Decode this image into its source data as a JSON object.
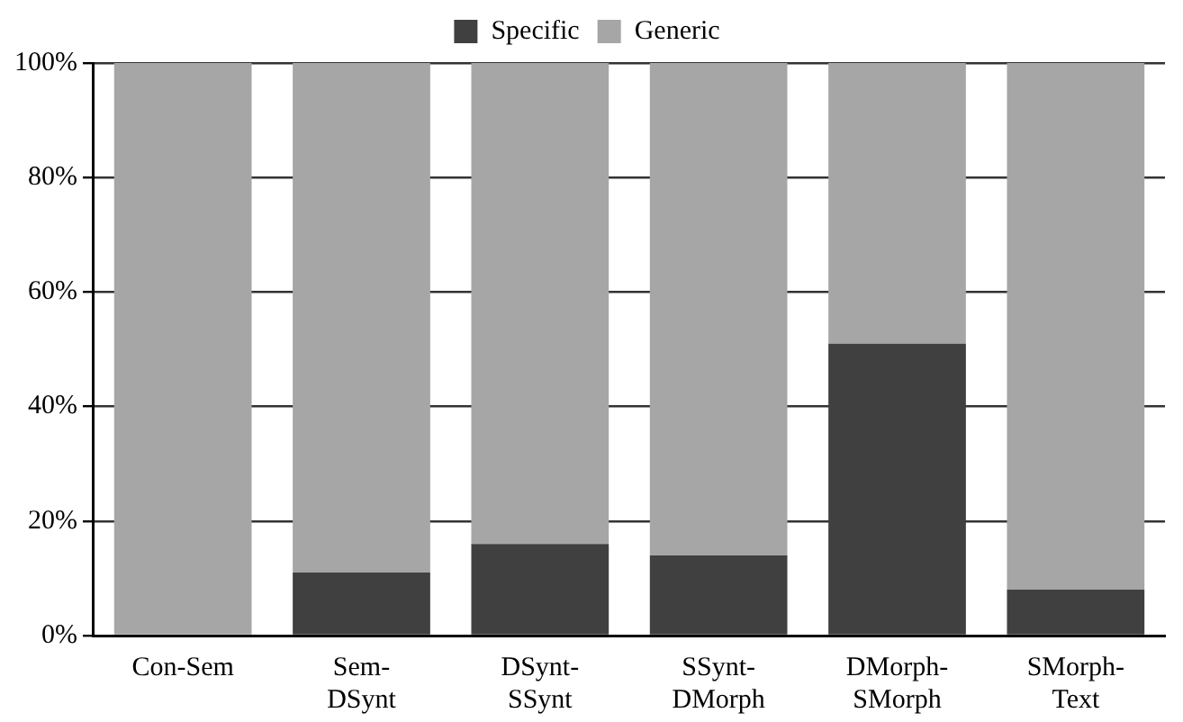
{
  "chart_data": {
    "type": "bar",
    "stacked": true,
    "categories": [
      "Con-Sem",
      "Sem-\nDSynt",
      "DSynt-\nSSynt",
      "SSynt-\nDMorph",
      "DMorph-\nSMorph",
      "SMorph-\nText"
    ],
    "series": [
      {
        "name": "Specific",
        "color": "#404040",
        "values": [
          0,
          11,
          16,
          14,
          51,
          8
        ]
      },
      {
        "name": "Generic",
        "color": "#a6a6a6",
        "values": [
          100,
          89,
          84,
          86,
          49,
          92
        ]
      }
    ],
    "ylim": [
      0,
      100
    ],
    "yticks": [
      {
        "value": 0,
        "label": "0%"
      },
      {
        "value": 20,
        "label": "20%"
      },
      {
        "value": 40,
        "label": "40%"
      },
      {
        "value": 60,
        "label": "60%"
      },
      {
        "value": 80,
        "label": "80%"
      },
      {
        "value": 100,
        "label": "100%"
      }
    ],
    "grid": "y",
    "legend": "top"
  }
}
